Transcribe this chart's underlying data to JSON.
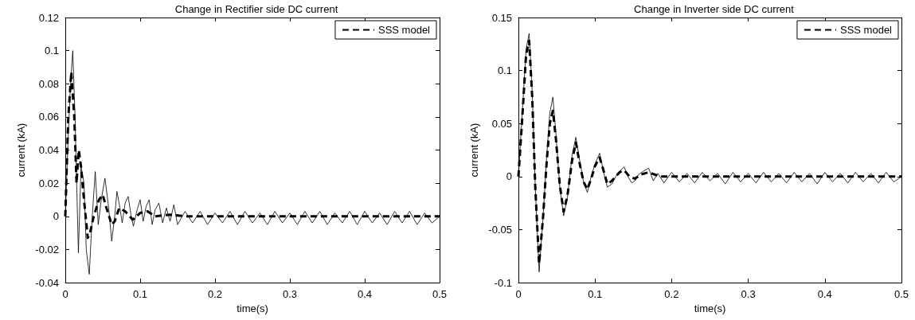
{
  "chart_data": [
    {
      "type": "line",
      "title": "Change in Rectifier side DC current",
      "xlabel": "time(s)",
      "ylabel": "current (kA)",
      "xlim": [
        0,
        0.5
      ],
      "xticks": [
        0,
        0.1,
        0.2,
        0.3,
        0.4,
        0.5
      ],
      "ylim": [
        -0.04,
        0.12
      ],
      "yticks": [
        -0.04,
        -0.02,
        0,
        0.02,
        0.04,
        0.06,
        0.08,
        0.1,
        0.12
      ],
      "grid": false,
      "legend": "top right",
      "marker": "none",
      "series": [
        {
          "color": "#000000",
          "line_style": "solid",
          "x": [
            0,
            0.004,
            0.007,
            0.01,
            0.013,
            0.0175,
            0.021,
            0.025,
            0.028,
            0.032,
            0.036,
            0.04,
            0.044,
            0.048,
            0.053,
            0.058,
            0.062,
            0.066,
            0.069,
            0.073,
            0.076,
            0.08,
            0.084,
            0.088,
            0.091,
            0.096,
            0.1,
            0.104,
            0.108,
            0.112,
            0.116,
            0.12,
            0.125,
            0.13,
            0.135,
            0.14,
            0.145,
            0.15,
            0.16,
            0.17,
            0.18,
            0.19,
            0.2,
            0.21,
            0.22,
            0.23,
            0.24,
            0.25,
            0.26,
            0.27,
            0.28,
            0.29,
            0.3,
            0.31,
            0.32,
            0.33,
            0.34,
            0.35,
            0.36,
            0.37,
            0.38,
            0.39,
            0.4,
            0.41,
            0.42,
            0.43,
            0.44,
            0.45,
            0.46,
            0.47,
            0.48,
            0.49,
            0.5
          ],
          "values": [
            0,
            0.05,
            0.08,
            0.1,
            0.06,
            -0.022,
            0.03,
            0.02,
            -0.02,
            -0.035,
            0.0,
            0.027,
            -0.005,
            0.01,
            0.023,
            0.005,
            -0.015,
            0.0,
            0.015,
            0.005,
            -0.004,
            0.008,
            0.012,
            0.0,
            -0.006,
            0.004,
            0.01,
            -0.003,
            0.006,
            0.01,
            -0.005,
            0.004,
            0.008,
            -0.004,
            0.005,
            -0.003,
            0.007,
            -0.005,
            0.003,
            -0.004,
            0.003,
            -0.005,
            0.002,
            -0.004,
            0.003,
            -0.005,
            0.003,
            -0.004,
            0.002,
            -0.005,
            0.003,
            -0.004,
            0.002,
            -0.005,
            0.003,
            -0.004,
            0.003,
            -0.005,
            0.002,
            -0.004,
            0.003,
            -0.005,
            0.003,
            -0.004,
            0.002,
            -0.005,
            0.003,
            -0.004,
            0.003,
            -0.005,
            0.002,
            -0.004,
            0.0
          ]
        },
        {
          "name": "SSS model",
          "color": "#000000",
          "line_style": "dashed",
          "x": [
            0,
            0.004,
            0.008,
            0.012,
            0.015,
            0.018,
            0.021,
            0.025,
            0.03,
            0.033,
            0.038,
            0.045,
            0.05,
            0.055,
            0.062,
            0.066,
            0.072,
            0.08,
            0.09,
            0.1,
            0.11,
            0.12,
            0.14,
            0.16,
            0.2,
            0.3,
            0.4,
            0.5
          ],
          "values": [
            0,
            0.06,
            0.087,
            0.06,
            0.02,
            0.04,
            0.03,
            0.01,
            -0.013,
            -0.01,
            0.0,
            0.01,
            0.013,
            0.005,
            -0.005,
            -0.003,
            0.005,
            0.003,
            -0.002,
            0.002,
            0.003,
            0.0,
            0.001,
            0.0,
            0.0,
            0.0,
            0.0,
            0.0
          ]
        }
      ]
    },
    {
      "type": "line",
      "title": "Change in Inverter side DC current",
      "xlabel": "time(s)",
      "ylabel": "current (kA)",
      "xlim": [
        0,
        0.5
      ],
      "xticks": [
        0,
        0.1,
        0.2,
        0.3,
        0.4,
        0.5
      ],
      "ylim": [
        -0.1,
        0.15
      ],
      "yticks": [
        -0.1,
        -0.05,
        0,
        0.05,
        0.1,
        0.15
      ],
      "grid": false,
      "legend": "top right",
      "marker": "none",
      "series": [
        {
          "color": "#000000",
          "line_style": "solid",
          "x": [
            0,
            0.005,
            0.01,
            0.014,
            0.018,
            0.022,
            0.027,
            0.032,
            0.037,
            0.041,
            0.045,
            0.049,
            0.054,
            0.059,
            0.064,
            0.07,
            0.075,
            0.08,
            0.085,
            0.09,
            0.095,
            0.1,
            0.106,
            0.111,
            0.116,
            0.122,
            0.127,
            0.132,
            0.138,
            0.143,
            0.148,
            0.152,
            0.157,
            0.163,
            0.17,
            0.176,
            0.182,
            0.19,
            0.2,
            0.21,
            0.22,
            0.23,
            0.24,
            0.25,
            0.26,
            0.27,
            0.28,
            0.29,
            0.3,
            0.31,
            0.32,
            0.33,
            0.34,
            0.35,
            0.36,
            0.37,
            0.38,
            0.39,
            0.4,
            0.41,
            0.42,
            0.43,
            0.44,
            0.45,
            0.46,
            0.47,
            0.48,
            0.49,
            0.5
          ],
          "values": [
            0,
            0.06,
            0.12,
            0.135,
            0.08,
            -0.01,
            -0.09,
            -0.04,
            0.02,
            0.06,
            0.075,
            0.04,
            -0.01,
            -0.037,
            -0.02,
            0.02,
            0.037,
            0.015,
            -0.005,
            -0.015,
            0.0,
            0.012,
            0.022,
            0.005,
            -0.01,
            -0.007,
            0.0,
            0.005,
            0.009,
            0.0,
            -0.006,
            -0.004,
            0.002,
            0.005,
            0.008,
            -0.004,
            0.003,
            -0.006,
            0.004,
            -0.005,
            0.003,
            -0.006,
            0.004,
            -0.004,
            0.003,
            -0.007,
            0.004,
            -0.005,
            0.003,
            -0.006,
            0.004,
            -0.005,
            0.003,
            -0.006,
            0.004,
            -0.005,
            0.003,
            -0.007,
            0.004,
            -0.005,
            0.003,
            -0.006,
            0.004,
            -0.005,
            0.003,
            -0.006,
            0.004,
            -0.005,
            0.0
          ]
        },
        {
          "name": "SSS model",
          "color": "#000000",
          "line_style": "dashed",
          "x": [
            0,
            0.005,
            0.01,
            0.014,
            0.018,
            0.022,
            0.027,
            0.032,
            0.037,
            0.041,
            0.045,
            0.049,
            0.054,
            0.059,
            0.064,
            0.07,
            0.075,
            0.08,
            0.085,
            0.09,
            0.095,
            0.1,
            0.106,
            0.111,
            0.116,
            0.122,
            0.127,
            0.132,
            0.138,
            0.145,
            0.152,
            0.16,
            0.17,
            0.185,
            0.2,
            0.3,
            0.4,
            0.5
          ],
          "values": [
            0,
            0.055,
            0.115,
            0.128,
            0.075,
            -0.01,
            -0.082,
            -0.04,
            0.015,
            0.05,
            0.062,
            0.035,
            -0.008,
            -0.033,
            -0.018,
            0.015,
            0.032,
            0.012,
            -0.005,
            -0.012,
            -0.002,
            0.01,
            0.018,
            0.006,
            -0.007,
            -0.004,
            0.0,
            0.004,
            0.006,
            0.0,
            -0.002,
            0.002,
            0.004,
            0.0,
            0.0,
            0.0,
            0.0,
            0.0
          ]
        }
      ]
    }
  ]
}
